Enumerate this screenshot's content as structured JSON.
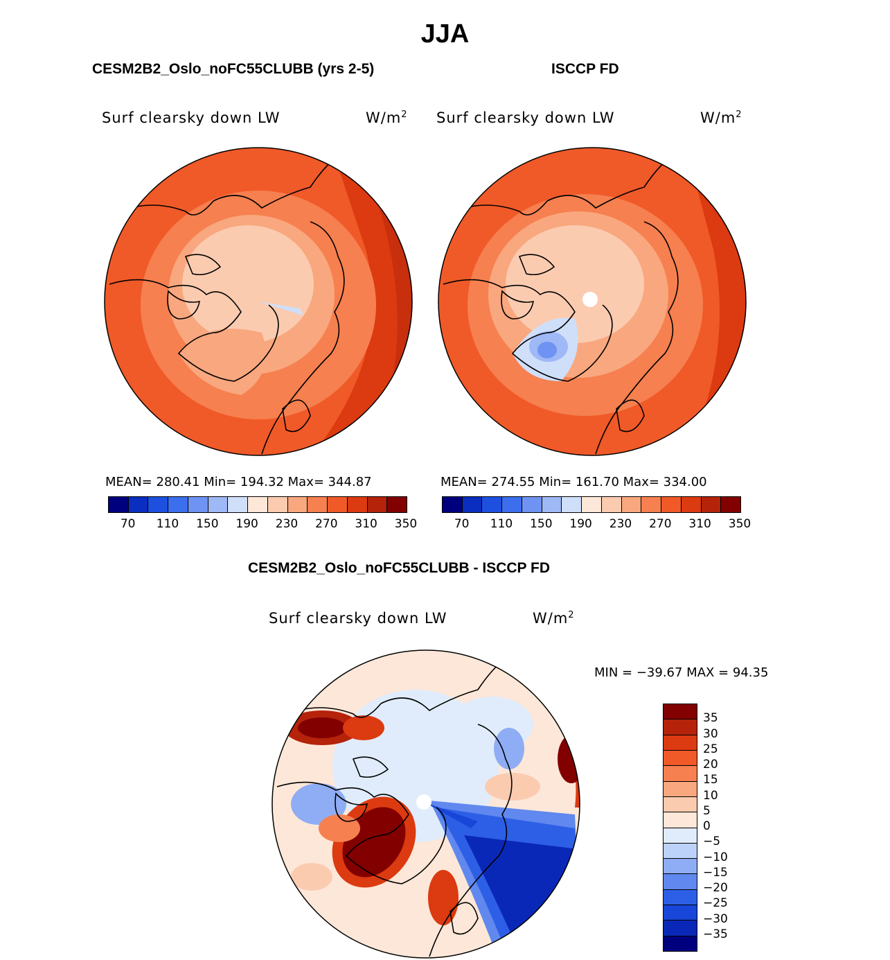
{
  "season": "JJA",
  "panels": {
    "model": {
      "title": "CESM2B2_Oslo_noFC55CLUBB (yrs 2-5)",
      "field": "Surf clearsky down LW",
      "units_base": "W/m",
      "units_exp": "2",
      "stats_text": "MEAN= 280.41   Min= 194.32   Max= 344.87"
    },
    "obs": {
      "title": "ISCCP FD",
      "field": "Surf clearsky down LW",
      "units_base": "W/m",
      "units_exp": "2",
      "stats_text": "MEAN= 274.55   Min= 161.70   Max= 334.00"
    },
    "diff": {
      "title": "CESM2B2_Oslo_noFC55CLUBB - ISCCP FD",
      "field": "Surf clearsky down LW",
      "units_base": "W/m",
      "units_exp": "2",
      "stats_text": "MIN = −39.67 MAX =  94.35"
    }
  },
  "colors": {
    "abs_scale": [
      "#00007f",
      "#0a2ec0",
      "#1e50e0",
      "#3c6eee",
      "#6e93f2",
      "#9fb8f6",
      "#cfdffa",
      "#fde7d8",
      "#fbcbb0",
      "#f9a77e",
      "#f6804f",
      "#f05a28",
      "#dc3a10",
      "#b4230a",
      "#820000"
    ],
    "diff_scale": [
      "#00007f",
      "#0a28b8",
      "#1746d8",
      "#2d5fe6",
      "#6088ee",
      "#8fadf4",
      "#bcd2f8",
      "#e0ecfb",
      "#fde7d8",
      "#fbcbb0",
      "#f9a77e",
      "#f6804f",
      "#f05a28",
      "#dc3a10",
      "#b4230a",
      "#820000"
    ]
  },
  "chart_data": [
    {
      "type": "heatmap",
      "projection": "north polar stereographic",
      "panel": "model",
      "colorbar_ticks": [
        "70",
        "110",
        "150",
        "190",
        "230",
        "270",
        "310",
        "350"
      ],
      "colorbar_levels": [
        70,
        90,
        110,
        130,
        150,
        170,
        190,
        210,
        230,
        250,
        270,
        290,
        310,
        330,
        350
      ],
      "mean": 280.41,
      "min": 194.32,
      "max": 344.87
    },
    {
      "type": "heatmap",
      "projection": "north polar stereographic",
      "panel": "obs",
      "colorbar_ticks": [
        "70",
        "110",
        "150",
        "190",
        "230",
        "270",
        "310",
        "350"
      ],
      "colorbar_levels": [
        70,
        90,
        110,
        130,
        150,
        170,
        190,
        210,
        230,
        250,
        270,
        290,
        310,
        330,
        350
      ],
      "mean": 274.55,
      "min": 161.7,
      "max": 334.0
    },
    {
      "type": "heatmap",
      "projection": "north polar stereographic",
      "panel": "diff",
      "colorbar_ticks": [
        "35",
        "30",
        "25",
        "20",
        "15",
        "10",
        "5",
        "0",
        "−5",
        "−10",
        "−15",
        "−20",
        "−25",
        "−30",
        "−35"
      ],
      "colorbar_levels": [
        35,
        30,
        25,
        20,
        15,
        10,
        5,
        0,
        -5,
        -10,
        -15,
        -20,
        -25,
        -30,
        -35
      ],
      "min": -39.67,
      "max": 94.35
    }
  ]
}
